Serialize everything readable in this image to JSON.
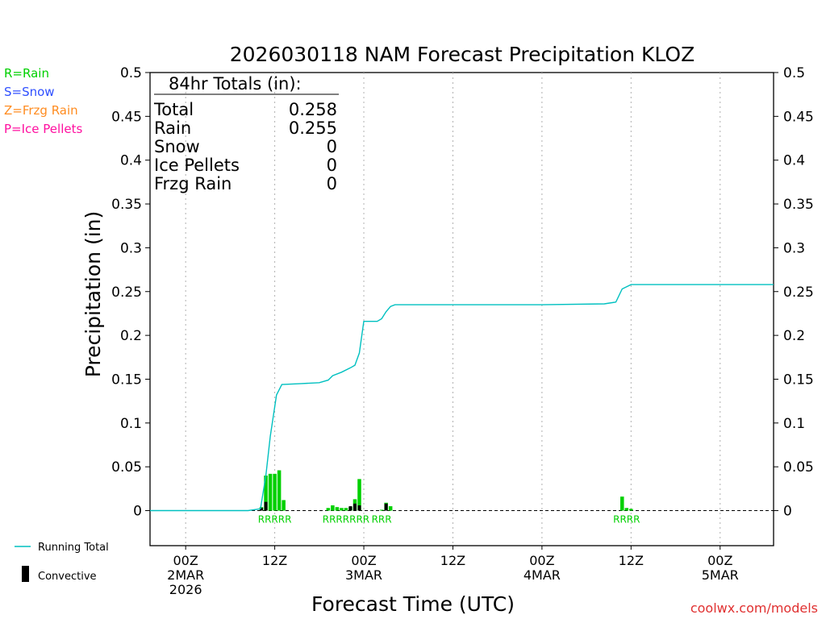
{
  "chart_data": {
    "type": "bar",
    "title": "2026030118 NAM Forecast Precipitation KLOZ",
    "xlabel": "Forecast Time (UTC)",
    "ylabel": "Precipitation (in)",
    "ylim": [
      -0.04,
      0.5
    ],
    "yticks": [
      0,
      0.05,
      0.1,
      0.15,
      0.2,
      0.25,
      0.3,
      0.35,
      0.4,
      0.45,
      0.5
    ],
    "ytick_labels": [
      "0",
      "0.05",
      "0.1",
      "0.15",
      "0.2",
      "0.25",
      "0.3",
      "0.35",
      "0.4",
      "0.45",
      "0.5"
    ],
    "xlim_hours": [
      -4,
      66
    ],
    "xticks": [
      {
        "hour": 0,
        "line1": "00Z",
        "line2": "2MAR",
        "line3": "2026"
      },
      {
        "hour": 10,
        "line1": "12Z",
        "line2": "",
        "line3": ""
      },
      {
        "hour": 20,
        "line1": "00Z",
        "line2": "3MAR",
        "line3": ""
      },
      {
        "hour": 30,
        "line1": "12Z",
        "line2": "",
        "line3": ""
      },
      {
        "hour": 40,
        "line1": "00Z",
        "line2": "4MAR",
        "line3": ""
      },
      {
        "hour": 50,
        "line1": "12Z",
        "line2": "",
        "line3": ""
      },
      {
        "hour": 60,
        "line1": "00Z",
        "line2": "5MAR",
        "line3": ""
      }
    ],
    "series": [
      {
        "name": "Rain",
        "color": "#00d000",
        "bars": [
          {
            "hour": 8.5,
            "value": 0.004
          },
          {
            "hour": 9.0,
            "value": 0.04
          },
          {
            "hour": 9.5,
            "value": 0.042
          },
          {
            "hour": 10.0,
            "value": 0.042
          },
          {
            "hour": 10.5,
            "value": 0.046
          },
          {
            "hour": 11.0,
            "value": 0.012
          },
          {
            "hour": 16.0,
            "value": 0.003
          },
          {
            "hour": 16.5,
            "value": 0.006
          },
          {
            "hour": 17.0,
            "value": 0.004
          },
          {
            "hour": 17.5,
            "value": 0.003
          },
          {
            "hour": 18.0,
            "value": 0.003
          },
          {
            "hour": 18.5,
            "value": 0.004
          },
          {
            "hour": 19.0,
            "value": 0.013
          },
          {
            "hour": 19.5,
            "value": 0.036
          },
          {
            "hour": 22.0,
            "value": 0.001
          },
          {
            "hour": 22.5,
            "value": 0.009
          },
          {
            "hour": 23.0,
            "value": 0.005
          },
          {
            "hour": 49.0,
            "value": 0.016
          },
          {
            "hour": 49.5,
            "value": 0.003
          },
          {
            "hour": 50.0,
            "value": 0.002
          }
        ]
      },
      {
        "name": "Convective",
        "color": "#000000",
        "bars": [
          {
            "hour": 8.5,
            "value": 0.003
          },
          {
            "hour": 9.0,
            "value": 0.01
          },
          {
            "hour": 18.5,
            "value": 0.005
          },
          {
            "hour": 19.0,
            "value": 0.008
          },
          {
            "hour": 19.5,
            "value": 0.006
          },
          {
            "hour": 22.5,
            "value": 0.008
          }
        ]
      },
      {
        "name": "Running Total",
        "color": "#00c0c0",
        "points": [
          [
            -4,
            0
          ],
          [
            7,
            0
          ],
          [
            8.4,
            0.002
          ],
          [
            9.0,
            0.04
          ],
          [
            9.5,
            0.085
          ],
          [
            10.2,
            0.132
          ],
          [
            10.8,
            0.144
          ],
          [
            13.0,
            0.145
          ],
          [
            15.0,
            0.146
          ],
          [
            16.0,
            0.149
          ],
          [
            16.5,
            0.154
          ],
          [
            17.5,
            0.158
          ],
          [
            18.5,
            0.163
          ],
          [
            19.0,
            0.166
          ],
          [
            19.5,
            0.18
          ],
          [
            20.0,
            0.216
          ],
          [
            21.5,
            0.216
          ],
          [
            22.0,
            0.219
          ],
          [
            22.5,
            0.227
          ],
          [
            23.0,
            0.233
          ],
          [
            23.5,
            0.235
          ],
          [
            30,
            0.235
          ],
          [
            40,
            0.235
          ],
          [
            47,
            0.236
          ],
          [
            48.3,
            0.238
          ],
          [
            49.0,
            0.253
          ],
          [
            50.0,
            0.258
          ],
          [
            66,
            0.258
          ]
        ]
      }
    ],
    "type_labels": [
      {
        "hour": 10.0,
        "text": "RRRRR"
      },
      {
        "hour": 18.0,
        "text": "RRRRRRR"
      },
      {
        "hour": 22.0,
        "text": "RRR"
      },
      {
        "hour": 49.5,
        "text": "RRRR"
      }
    ],
    "legend_left": [
      {
        "text": "R=Rain",
        "color": "#00d000"
      },
      {
        "text": "S=Snow",
        "color": "#3050ff"
      },
      {
        "text": "Z=Frzg Rain",
        "color": "#ff8c20"
      },
      {
        "text": "P=Ice Pellets",
        "color": "#ff10a0"
      }
    ],
    "totals_box": {
      "header": "84hr Totals (in):",
      "rows": [
        {
          "label": "Total",
          "value": "0.258"
        },
        {
          "label": "Rain",
          "value": "0.255"
        },
        {
          "label": "Snow",
          "value": "0"
        },
        {
          "label": "Ice Pellets",
          "value": "0"
        },
        {
          "label": "Frzg Rain",
          "value": "0"
        }
      ]
    },
    "legend_bottom": [
      {
        "text": "Running Total",
        "color": "#00c0c0"
      },
      {
        "text": "Convective",
        "color": "#000000"
      }
    ],
    "credit": "coolwx.com/models",
    "credit_color": "#e03030"
  }
}
